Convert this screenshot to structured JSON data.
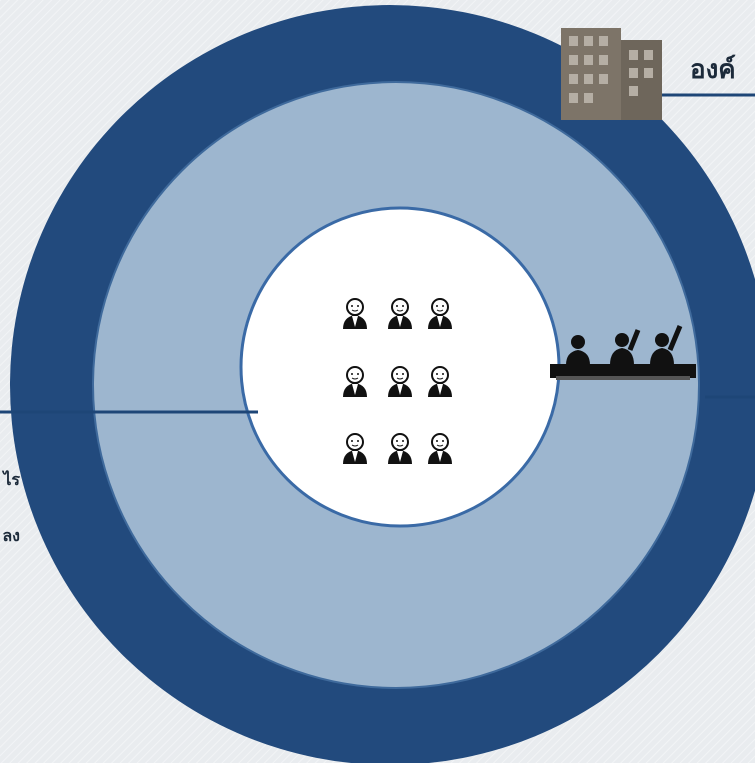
{
  "labels": {
    "top_right": "องค์",
    "left_1": "ไร",
    "left_2": "ลง"
  }
}
